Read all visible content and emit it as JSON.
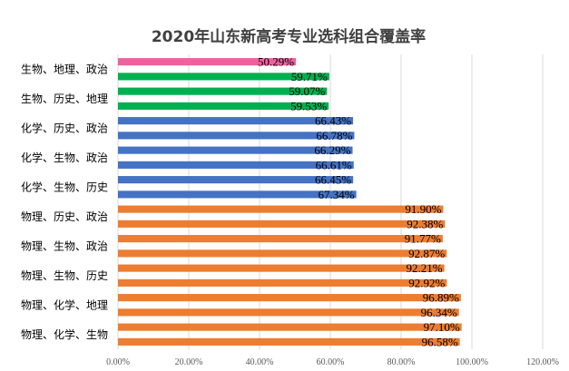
{
  "chart_data": {
    "type": "bar",
    "orientation": "horizontal",
    "title": "2020年山东新高考专业选科组合覆盖率",
    "categories": [
      "生物、地理、政治",
      "生物、历史、地理",
      "化学、历史、政治",
      "化学、生物、政治",
      "化学、生物、历史",
      "物理、历史、政治",
      "物理、生物、政治",
      "物理、生物、历史",
      "物理、化学、地理",
      "物理、化学、生物"
    ],
    "bars": [
      {
        "value": 50.29,
        "label": "50.29%",
        "color": "#f0609e"
      },
      {
        "value": 59.71,
        "label": "59.71%",
        "color": "#00b050"
      },
      {
        "value": 59.07,
        "label": "59.07%",
        "color": "#00b050"
      },
      {
        "value": 59.53,
        "label": "59.53%",
        "color": "#00b050"
      },
      {
        "value": 66.43,
        "label": "66.43%",
        "color": "#4472c4"
      },
      {
        "value": 66.78,
        "label": "66.78%",
        "color": "#4472c4"
      },
      {
        "value": 66.29,
        "label": "66.29%",
        "color": "#4472c4"
      },
      {
        "value": 66.61,
        "label": "66.61%",
        "color": "#4472c4"
      },
      {
        "value": 66.45,
        "label": "66.45%",
        "color": "#4472c4"
      },
      {
        "value": 67.34,
        "label": "67.34%",
        "color": "#4472c4"
      },
      {
        "value": 91.9,
        "label": "91.90%",
        "color": "#ed7d31"
      },
      {
        "value": 92.38,
        "label": "92.38%",
        "color": "#ed7d31"
      },
      {
        "value": 91.77,
        "label": "91.77%",
        "color": "#ed7d31"
      },
      {
        "value": 92.87,
        "label": "92.87%",
        "color": "#ed7d31"
      },
      {
        "value": 92.21,
        "label": "92.21%",
        "color": "#ed7d31"
      },
      {
        "value": 92.92,
        "label": "92.92%",
        "color": "#ed7d31"
      },
      {
        "value": 96.89,
        "label": "96.89%",
        "color": "#ed7d31"
      },
      {
        "value": 96.34,
        "label": "96.34%",
        "color": "#ed7d31"
      },
      {
        "value": 97.1,
        "label": "97.10%",
        "color": "#ed7d31"
      },
      {
        "value": 96.58,
        "label": "96.58%",
        "color": "#ed7d31"
      }
    ],
    "xlim": [
      0,
      120
    ],
    "ticks": [
      "0.00%",
      "20.00%",
      "40.00%",
      "60.00%",
      "80.00%",
      "100.00%",
      "120.00%"
    ],
    "grid": true,
    "legend": "none"
  }
}
